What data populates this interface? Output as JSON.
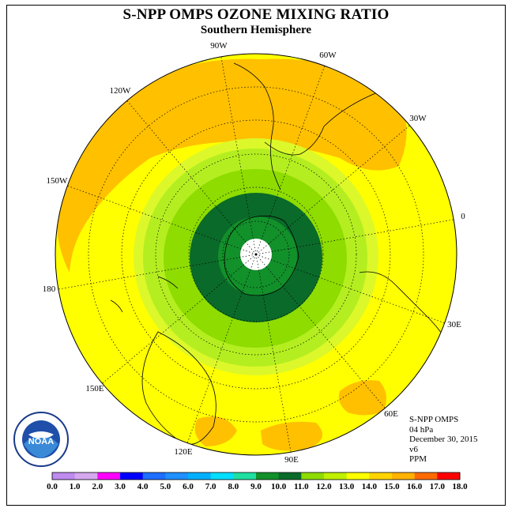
{
  "title": "S-NPP OMPS OZONE MIXING RATIO",
  "subtitle": "Southern Hemisphere",
  "longitude_labels": [
    {
      "key": "90W",
      "text": "90W"
    },
    {
      "key": "60W",
      "text": "60W"
    },
    {
      "key": "30W",
      "text": "30W"
    },
    {
      "key": "0",
      "text": "0"
    },
    {
      "key": "30E",
      "text": "30E"
    },
    {
      "key": "60E",
      "text": "60E"
    },
    {
      "key": "90E",
      "text": "90E"
    },
    {
      "key": "120E",
      "text": "120E"
    },
    {
      "key": "150E",
      "text": "150E"
    },
    {
      "key": "180",
      "text": "180"
    },
    {
      "key": "150W",
      "text": "150W"
    },
    {
      "key": "120W",
      "text": "120W"
    }
  ],
  "info": {
    "instrument": "S-NPP OMPS",
    "level": "04 hPa",
    "date": "December 30, 2015",
    "version": "v6",
    "units": "PPM"
  },
  "logo": {
    "text": "NOAA",
    "icon": "noaa-logo-icon"
  },
  "colorbar": {
    "labels": [
      "0.0",
      "1.0",
      "2.0",
      "3.0",
      "4.0",
      "5.0",
      "6.0",
      "7.0",
      "8.0",
      "9.0",
      "10.0",
      "11.0",
      "12.0",
      "13.0",
      "14.0",
      "15.0",
      "16.0",
      "17.0",
      "18.0"
    ],
    "colors": [
      "#bf8bef",
      "#d6a8ef",
      "#ff00ff",
      "#0000ff",
      "#1e6eff",
      "#1e90ff",
      "#00b0ff",
      "#00dfff",
      "#1fe0a0",
      "#12902a",
      "#0a6a2a",
      "#8edc00",
      "#bff000",
      "#ffff00",
      "#ffd400",
      "#ffb200",
      "#ff6a00",
      "#ff0000",
      "#8b5a3c"
    ]
  },
  "colors": {
    "background": "#ffff00",
    "orange": "#ffc000",
    "light_yellow_green": "#dcf82a",
    "light_green": "#b4ee20",
    "green": "#8edc00",
    "dark_green": "#12902a",
    "darkest_green": "#0a6a2a"
  }
}
